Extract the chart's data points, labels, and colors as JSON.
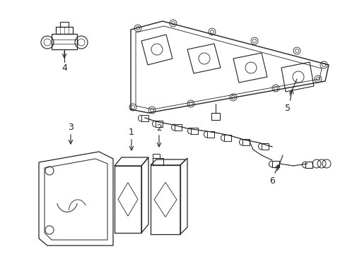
{
  "background_color": "#ffffff",
  "line_color": "#222222",
  "label_color": "#000000",
  "figsize": [
    4.89,
    3.6
  ],
  "dpi": 100,
  "label_fontsize": 9
}
